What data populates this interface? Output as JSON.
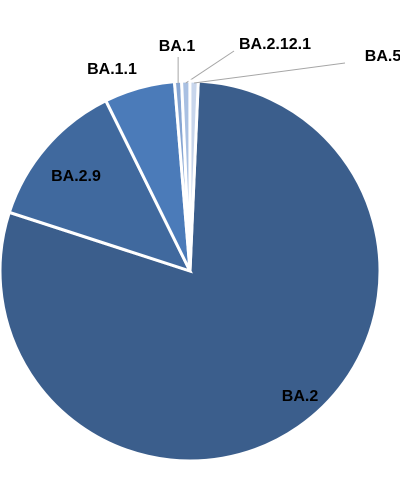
{
  "chart_data": {
    "type": "pie",
    "categories": [
      "BA.2",
      "BA.2.9",
      "BA.1.1",
      "BA.1",
      "BA.2.12.1",
      "BA.5"
    ],
    "values": [
      79.3,
      12.7,
      6.0,
      0.6,
      0.7,
      0.7
    ],
    "colors": [
      "#3b5e8c",
      "#40699e",
      "#4b7bb9",
      "#86a5d2",
      "#a9c0e2",
      "#c8d6ec"
    ]
  }
}
